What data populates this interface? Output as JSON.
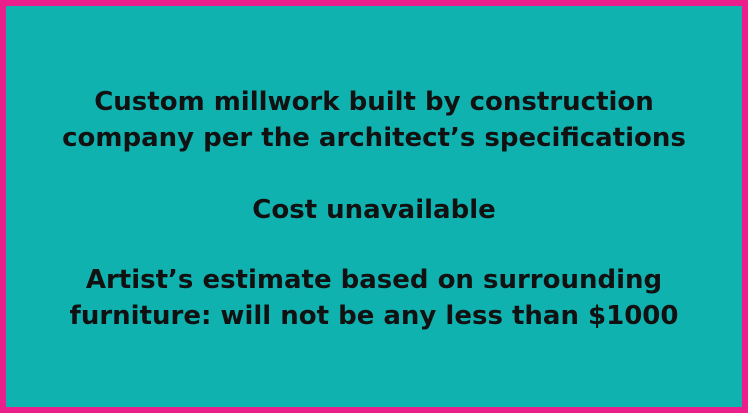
{
  "colors": {
    "border": "#ec1e8c",
    "background": "#10b2b0",
    "text": "#111111"
  },
  "paragraphs": [
    {
      "lines": [
        "Custom millwork built by construction",
        "company per the architect’s specifications"
      ]
    },
    {
      "lines": [
        "Cost unavailable"
      ]
    },
    {
      "lines": [
        "Artist’s estimate based on surrounding",
        "furniture: will not be any less than $1000"
      ]
    }
  ]
}
